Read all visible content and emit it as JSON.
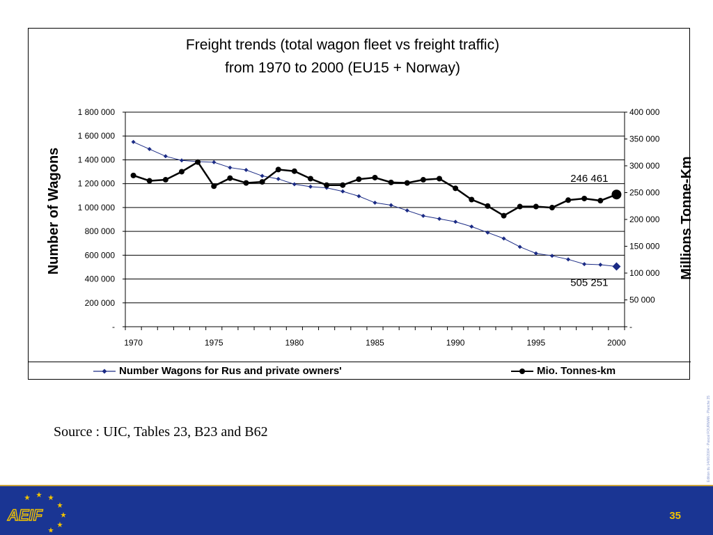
{
  "page": {
    "source_text": "Source : UIC, Tables 23, B23 and B62",
    "page_number": "35",
    "side_note": "Edition du 14/06/2004 - Pascal FOURMAN - Planche 35",
    "logo_text": "AEIF",
    "colors": {
      "footer": "#1a3593",
      "page_number": "#f2c300",
      "series_wagons": "#1b2b85",
      "series_tkm": "#000000"
    }
  },
  "chart_data": {
    "type": "line",
    "title_line1": "Freight trends (total wagon fleet vs freight traffic)",
    "title_line2": "from 1970 to 2000 (EU15 + Norway)",
    "xlabel": "",
    "ylabel_left": "Number of Wagons",
    "ylabel_right": "Millions Tonne-Km",
    "x_ticks": [
      "1970",
      "1975",
      "1980",
      "1985",
      "1990",
      "1995",
      "2000"
    ],
    "y_left_ticks": [
      "-",
      "200 000",
      "400 000",
      "600 000",
      "800 000",
      "1 000 000",
      "1 200 000",
      "1 400 000",
      "1 600 000",
      "1 800 000"
    ],
    "y_right_ticks": [
      "-",
      "50 000",
      "100 000",
      "150 000",
      "200 000",
      "250 000",
      "300 000",
      "350 000",
      "400 000"
    ],
    "ylim_left": [
      0,
      1800000
    ],
    "ylim_right": [
      0,
      400000
    ],
    "xlim": [
      1970,
      2000
    ],
    "grid": "horizontal",
    "legend_position": "bottom",
    "x": [
      1970,
      1971,
      1972,
      1973,
      1974,
      1975,
      1976,
      1977,
      1978,
      1979,
      1980,
      1981,
      1982,
      1983,
      1984,
      1985,
      1986,
      1987,
      1988,
      1989,
      1990,
      1991,
      1992,
      1993,
      1994,
      1995,
      1996,
      1997,
      1998,
      1999,
      2000
    ],
    "series": [
      {
        "name": "Number Wagons for Rus and private owners'",
        "axis": "left",
        "marker": "diamond",
        "values": [
          1550000,
          1490000,
          1430000,
          1395000,
          1385000,
          1380000,
          1335000,
          1315000,
          1265000,
          1240000,
          1195000,
          1175000,
          1165000,
          1135000,
          1095000,
          1040000,
          1020000,
          975000,
          930000,
          905000,
          880000,
          840000,
          790000,
          740000,
          670000,
          615000,
          595000,
          565000,
          525000,
          520000,
          505251
        ],
        "end_label": "505 251"
      },
      {
        "name": "Mio. Tonnes-km",
        "axis": "right",
        "marker": "circle",
        "values": [
          282000,
          272000,
          274000,
          289000,
          307000,
          262000,
          277000,
          268000,
          270000,
          293000,
          290000,
          276000,
          264000,
          264000,
          275000,
          278000,
          269000,
          268000,
          274000,
          276000,
          258000,
          237000,
          225000,
          207000,
          224000,
          224000,
          222000,
          236000,
          239000,
          235000,
          246461
        ],
        "end_label": "246 461"
      }
    ]
  }
}
